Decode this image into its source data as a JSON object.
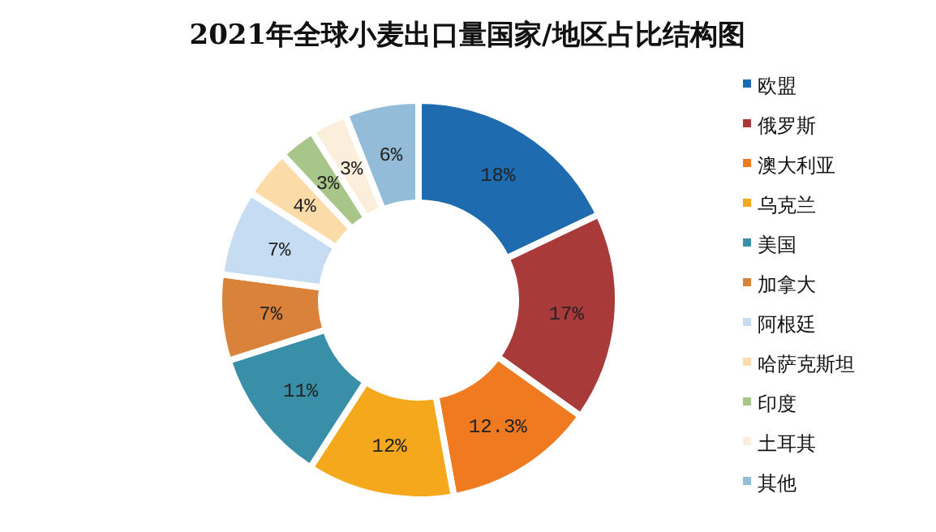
{
  "chart_data": {
    "type": "donut",
    "title": "2021年全球小麦出口量国家/地区占比结构图",
    "categories": [
      "欧盟",
      "俄罗斯",
      "澳大利亚",
      "乌克兰",
      "美国",
      "加拿大",
      "阿根廷",
      "哈萨克斯坦",
      "印度",
      "土耳其",
      "其他"
    ],
    "values": [
      18,
      17,
      12.3,
      12,
      11,
      7,
      7,
      4,
      3,
      3,
      6
    ],
    "value_labels": [
      "18%",
      "17%",
      "12.3%",
      "12%",
      "11%",
      "7%",
      "7%",
      "4%",
      "3%",
      "3%",
      "6%"
    ],
    "colors": [
      "#1f6bb0",
      "#a83a3a",
      "#f07a1f",
      "#f5a81c",
      "#3a8fa8",
      "#d9823a",
      "#c6dcf2",
      "#fbdca8",
      "#a8c68a",
      "#fbefdc",
      "#92bcd8"
    ],
    "legend": "right"
  }
}
